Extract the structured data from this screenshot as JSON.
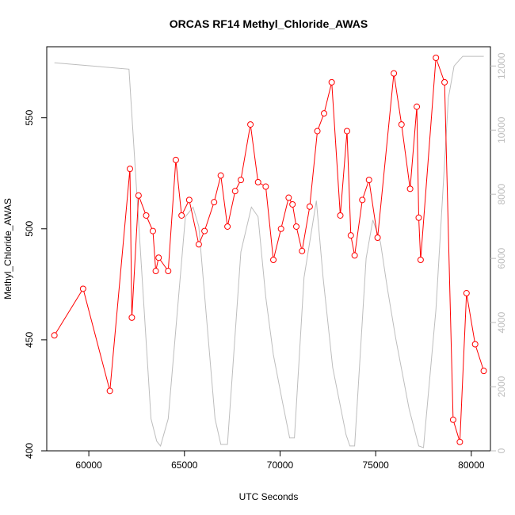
{
  "chart_data": {
    "type": "line",
    "title": "ORCAS RF14 Methyl_Chloride_AWAS",
    "xlabel": "UTC Seconds",
    "ylabel": "Methyl_Chloride_AWAS",
    "xlim": [
      57800,
      81000
    ],
    "ylim": [
      400,
      582
    ],
    "y2lim": [
      0,
      12600
    ],
    "x_ticks": [
      60000,
      65000,
      70000,
      75000,
      80000
    ],
    "y_ticks": [
      400,
      450,
      500,
      550
    ],
    "y2_ticks": [
      0,
      2000,
      4000,
      6000,
      8000,
      10000,
      12000
    ],
    "grid": false,
    "series": [
      {
        "name": "",
        "axis": "left",
        "color": "#ff0000",
        "marker": "open-circle",
        "x": [
          58200,
          59700,
          61100,
          62150,
          62250,
          62600,
          63000,
          63350,
          63500,
          63650,
          64150,
          64550,
          64850,
          65250,
          65750,
          66050,
          66550,
          66900,
          67250,
          67650,
          67950,
          68450,
          68850,
          69250,
          69650,
          70050,
          70450,
          70650,
          70850,
          71150,
          71550,
          71950,
          72300,
          72700,
          73150,
          73500,
          73700,
          73900,
          74300,
          74650,
          75100,
          75950,
          76350,
          76800,
          77150,
          77250,
          77350,
          78150,
          78600,
          79050,
          79400,
          79750,
          80200,
          80650
        ],
        "y": [
          452,
          473,
          427,
          527,
          460,
          515,
          506,
          499,
          481,
          487,
          481,
          531,
          506,
          513,
          493,
          499,
          512,
          524,
          501,
          517,
          522,
          547,
          521,
          519,
          486,
          500,
          514,
          511,
          501,
          490,
          510,
          544,
          552,
          566,
          506,
          544,
          497,
          488,
          513,
          522,
          496,
          570,
          547,
          518,
          555,
          505,
          486,
          577,
          566,
          414,
          404,
          471,
          448,
          436
        ]
      },
      {
        "name": "",
        "axis": "right",
        "color": "#bdbdbd",
        "marker": "none",
        "x": [
          58200,
          62100,
          63250,
          63550,
          63750,
          64150,
          65050,
          65450,
          65750,
          66600,
          66900,
          67250,
          67950,
          68500,
          68850,
          69250,
          69650,
          70100,
          70500,
          70750,
          71250,
          71900,
          72250,
          72750,
          73450,
          73650,
          73900,
          74500,
          74850,
          75250,
          75600,
          76050,
          76750,
          77250,
          77500,
          78150,
          78800,
          79100,
          79550,
          80650
        ],
        "y": [
          12100,
          11900,
          1000,
          300,
          150,
          1000,
          7300,
          7600,
          7000,
          1000,
          200,
          200,
          6200,
          7600,
          7300,
          4800,
          3000,
          1600,
          400,
          400,
          5400,
          7800,
          5400,
          2600,
          500,
          150,
          150,
          6000,
          7200,
          6500,
          5100,
          3500,
          1300,
          150,
          100,
          4400,
          11000,
          12000,
          12300,
          12300
        ]
      }
    ]
  }
}
